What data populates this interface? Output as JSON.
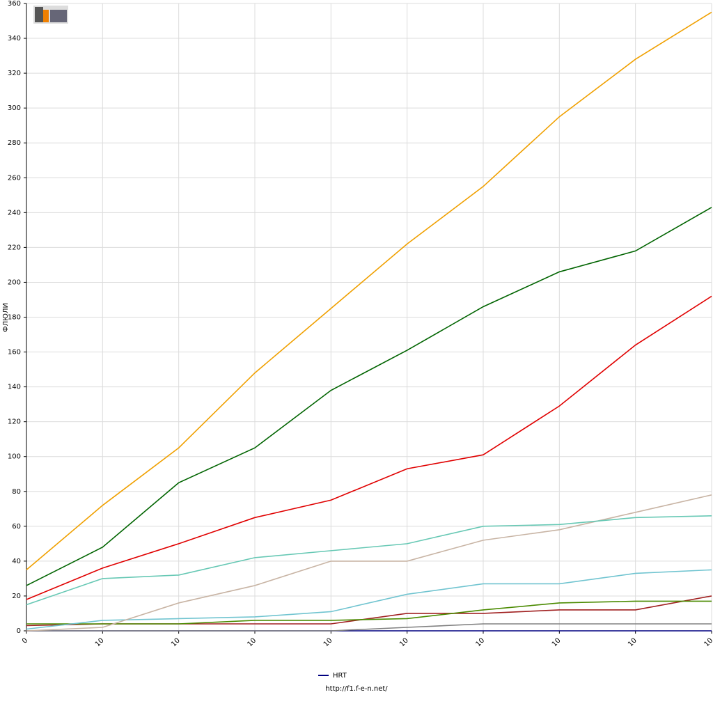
{
  "chart_data": {
    "type": "line",
    "y_label": "ФЛЮЛИ",
    "footer": "http://f1.f-e-n.net/",
    "categories": [
      "0",
      "10",
      "10",
      "10",
      "10",
      "10",
      "10",
      "10",
      "10",
      "10"
    ],
    "ylim": [
      0,
      360
    ],
    "yticks": [
      0,
      20,
      40,
      60,
      80,
      100,
      120,
      140,
      160,
      180,
      200,
      220,
      240,
      260,
      280,
      300,
      320,
      340,
      360
    ],
    "grid": true,
    "legend": "bottom",
    "series": [
      {
        "color": "#f0a000",
        "values": [
          35,
          72,
          105,
          148,
          185,
          222,
          255,
          295,
          328,
          355
        ]
      },
      {
        "color": "#006400",
        "values": [
          26,
          48,
          85,
          105,
          138,
          161,
          186,
          206,
          218,
          243
        ]
      },
      {
        "color": "#e00000",
        "values": [
          18,
          36,
          50,
          65,
          75,
          93,
          101,
          129,
          164,
          192
        ]
      },
      {
        "color": "#66c8b4",
        "values": [
          15,
          30,
          32,
          42,
          46,
          50,
          60,
          61,
          65,
          66
        ]
      },
      {
        "color": "#c8b4a4",
        "values": [
          0,
          2,
          16,
          26,
          40,
          40,
          52,
          58,
          68,
          78
        ]
      },
      {
        "color": "#70c4d0",
        "values": [
          1,
          6,
          7,
          8,
          11,
          21,
          27,
          27,
          33,
          35
        ]
      },
      {
        "color": "#4a8a00",
        "values": [
          4,
          4,
          4,
          6,
          6,
          7,
          12,
          16,
          17,
          17
        ]
      },
      {
        "color": "#a02020",
        "values": [
          3,
          4,
          4,
          4,
          4,
          10,
          10,
          12,
          12,
          20
        ]
      },
      {
        "color": "#808080",
        "values": [
          0,
          0,
          0,
          0,
          0,
          2,
          4,
          4,
          4,
          4
        ]
      },
      {
        "name": "HRT",
        "color": "#000080",
        "values": [
          0,
          0,
          0,
          0,
          0,
          0,
          0,
          0,
          0,
          0
        ]
      }
    ]
  }
}
